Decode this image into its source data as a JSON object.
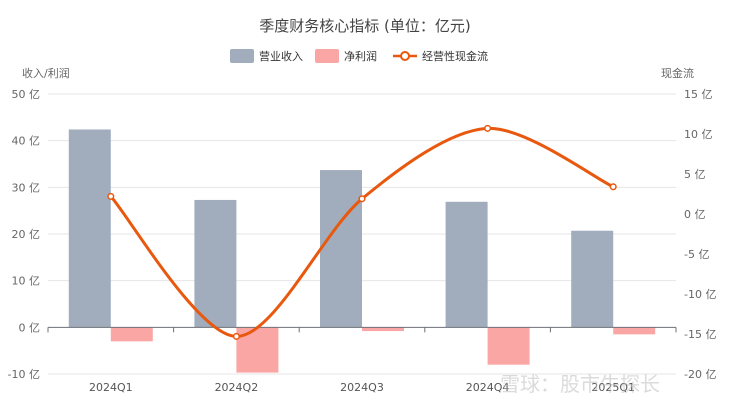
{
  "chart_data": {
    "type": "bar",
    "title": "季度财务核心指标 (单位：亿元)",
    "categories": [
      "2024Q1",
      "2024Q2",
      "2024Q3",
      "2024Q4",
      "2025Q1"
    ],
    "left_axis": {
      "label": "收入/利润",
      "range": [
        -10,
        50
      ],
      "ticks": [
        -10,
        0,
        10,
        20,
        30,
        40,
        50
      ],
      "tick_labels": [
        "-10 亿",
        "0 亿",
        "10 亿",
        "20 亿",
        "30 亿",
        "40 亿",
        "50 亿"
      ]
    },
    "right_axis": {
      "label": "现金流",
      "range": [
        -20,
        15
      ],
      "ticks": [
        -20,
        -15,
        -10,
        -5,
        0,
        5,
        10,
        15
      ],
      "tick_labels": [
        "-20 亿",
        "-15 亿",
        "-10 亿",
        "-5 亿",
        "0 亿",
        "5 亿",
        "10 亿",
        "15 亿"
      ]
    },
    "series": [
      {
        "name": "营业收入",
        "type": "bar",
        "axis": "left",
        "color": "#a1adbd",
        "values": [
          42.4,
          27.3,
          33.7,
          26.9,
          20.7
        ]
      },
      {
        "name": "净利润",
        "type": "bar",
        "axis": "left",
        "color": "#f9a6a4",
        "values": [
          -3.0,
          -9.7,
          -0.8,
          -8.0,
          -1.5
        ]
      },
      {
        "name": "经营性现金流",
        "type": "line",
        "axis": "right",
        "color": "#e8580e",
        "values": [
          2.2,
          -15.3,
          1.9,
          10.7,
          3.4
        ]
      }
    ],
    "grid": true,
    "legend_position": "top-center"
  },
  "watermark": "雪球：股市牛探长"
}
